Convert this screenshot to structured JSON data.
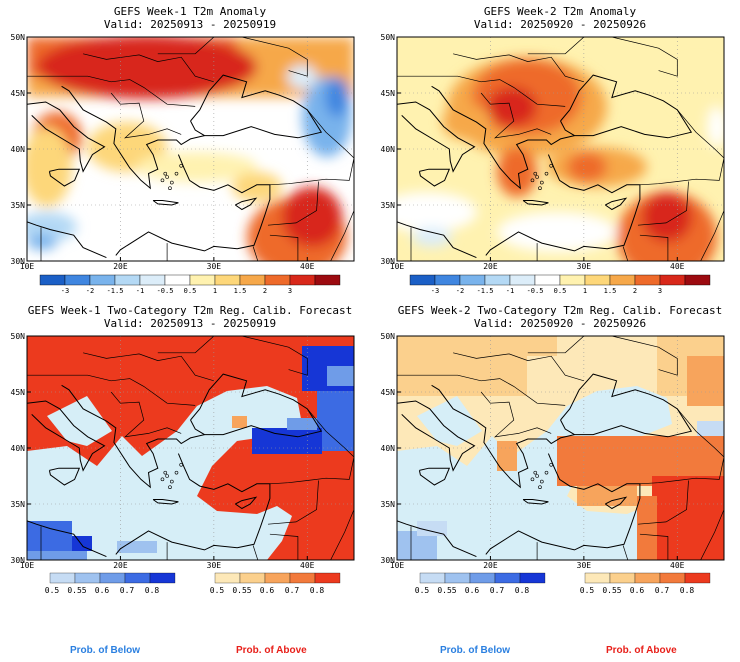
{
  "panels": [
    {
      "title": "GEFS Week-1 T2m Anomaly",
      "valid": "Valid: 20250913 - 20250919",
      "type": "anomaly"
    },
    {
      "title": "GEFS Week-2 T2m Anomaly",
      "valid": "Valid: 20250920 - 20250926",
      "type": "anomaly"
    },
    {
      "title": "GEFS Week-1 Two-Category T2m Reg. Calib. Forecast",
      "valid": "Valid: 20250913 - 20250919",
      "type": "probability"
    },
    {
      "title": "GEFS Week-2 Two-Category T2m Reg. Calib. Forecast",
      "valid": "Valid: 20250920 - 20250926",
      "type": "probability"
    }
  ],
  "map": {
    "lon_ticks": [
      "10E",
      "20E",
      "30E",
      "40E"
    ],
    "lat_ticks": [
      "50N",
      "45N",
      "40N",
      "35N",
      "30N"
    ],
    "extent": {
      "lon": [
        10,
        45
      ],
      "lat": [
        30,
        50
      ]
    },
    "grid": "dotted"
  },
  "anomaly_colorbar": {
    "labels": [
      "-3",
      "-2",
      "-1.5",
      "-1",
      "-0.5",
      "0.5",
      "1",
      "1.5",
      "2",
      "3"
    ],
    "colors": [
      "#1b5fc6",
      "#3f86e0",
      "#79b3ec",
      "#b4d9f5",
      "#dcedf9",
      "#ffffff",
      "#fff2b0",
      "#fdd77a",
      "#f6a84a",
      "#ee6a2a",
      "#d8281a",
      "#9c0a10"
    ]
  },
  "below_colorbar": {
    "labels": [
      "0.5",
      "0.55",
      "0.6",
      "0.7",
      "0.8"
    ],
    "colors": [
      "#c6dcf4",
      "#9fc2ef",
      "#6f9ce8",
      "#3c6be3",
      "#1636d6"
    ]
  },
  "above_colorbar": {
    "labels": [
      "0.5",
      "0.55",
      "0.6",
      "0.7",
      "0.8"
    ],
    "colors": [
      "#fde8b8",
      "#fbd08d",
      "#f7a45c",
      "#f27a3c",
      "#ec3a1e"
    ]
  },
  "legend": {
    "below": "Prob. of Below",
    "above": "Prob. of Above"
  }
}
